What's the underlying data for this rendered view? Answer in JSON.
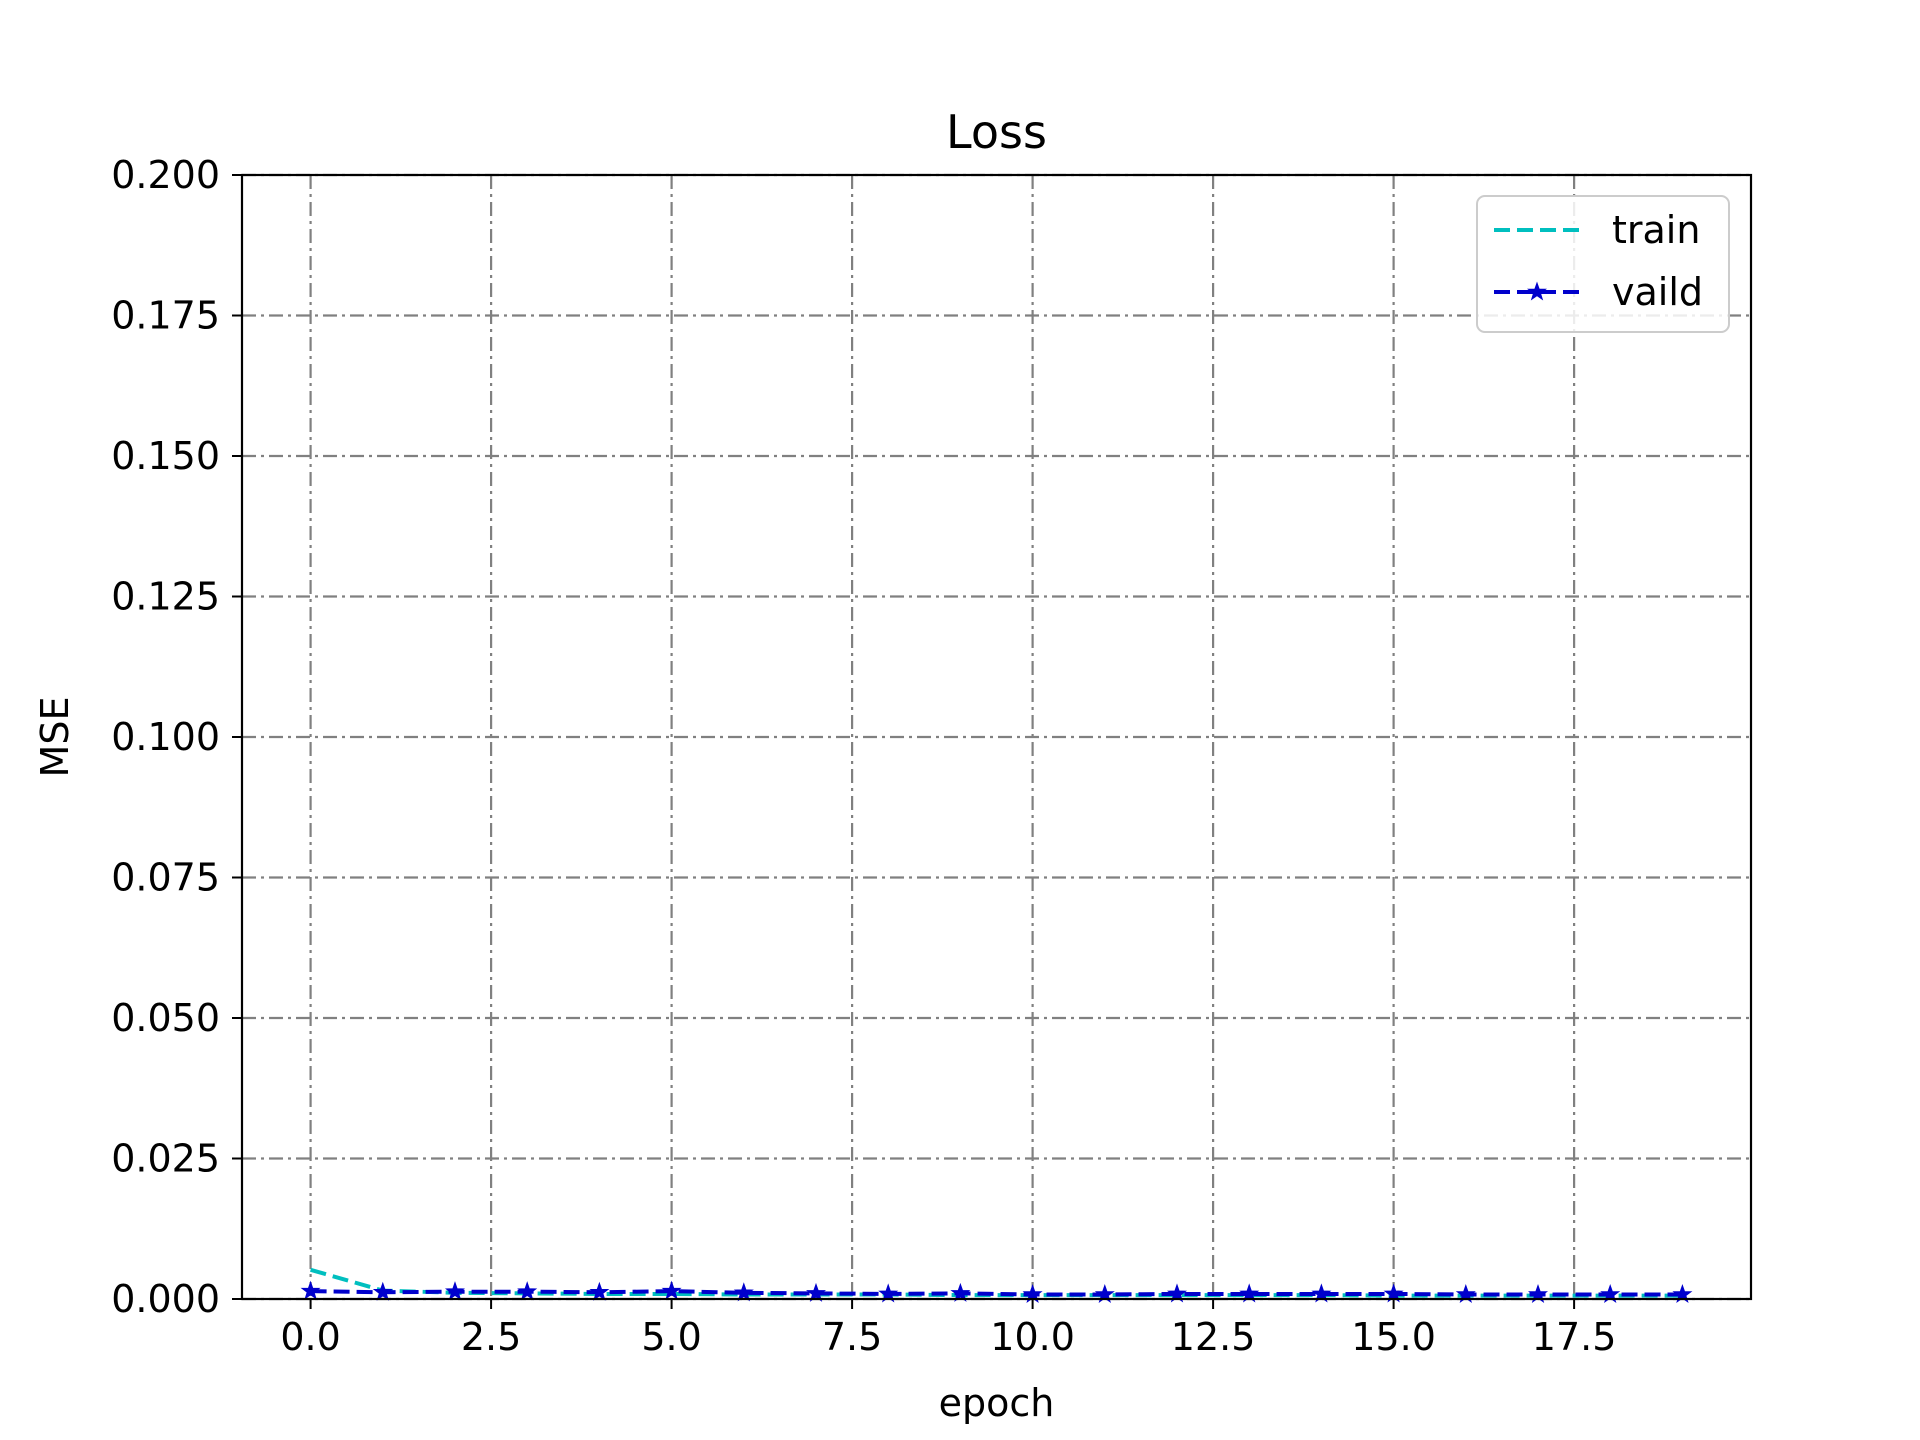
{
  "chart_data": {
    "type": "line",
    "title": "Loss",
    "xlabel": "epoch",
    "ylabel": "MSE",
    "xlim": [
      -0.95,
      19.95
    ],
    "ylim": [
      0,
      0.2
    ],
    "xticks": [
      0.0,
      2.5,
      5.0,
      7.5,
      10.0,
      12.5,
      15.0,
      17.5
    ],
    "xtick_labels": [
      "0.0",
      "2.5",
      "5.0",
      "7.5",
      "10.0",
      "12.5",
      "15.0",
      "17.5"
    ],
    "yticks": [
      0.0,
      0.025,
      0.05,
      0.075,
      0.1,
      0.125,
      0.15,
      0.175,
      0.2
    ],
    "ytick_labels": [
      "0.000",
      "0.025",
      "0.050",
      "0.075",
      "0.100",
      "0.125",
      "0.150",
      "0.175",
      "0.200"
    ],
    "grid": true,
    "legend_position": "top-right",
    "x": [
      0,
      1,
      2,
      3,
      4,
      5,
      6,
      7,
      8,
      9,
      10,
      11,
      12,
      13,
      14,
      15,
      16,
      17,
      18,
      19
    ],
    "series": [
      {
        "name": "train",
        "color": "#00bfbf",
        "line_style": "dashed",
        "marker": "none",
        "values": [
          0.0052,
          0.0015,
          0.0011,
          0.001,
          0.0009,
          0.0009,
          0.0008,
          0.0008,
          0.0008,
          0.0007,
          0.0007,
          0.0007,
          0.0007,
          0.0007,
          0.0007,
          0.0006,
          0.0006,
          0.0006,
          0.0006,
          0.0006
        ]
      },
      {
        "name": "vaild",
        "color": "#0000cc",
        "line_style": "dashed",
        "marker": "star",
        "values": [
          0.0014,
          0.0012,
          0.0013,
          0.0013,
          0.0012,
          0.0014,
          0.0011,
          0.001,
          0.0009,
          0.001,
          0.0008,
          0.0008,
          0.0009,
          0.0009,
          0.0009,
          0.0009,
          0.0008,
          0.0008,
          0.0008,
          0.0008
        ]
      }
    ]
  }
}
